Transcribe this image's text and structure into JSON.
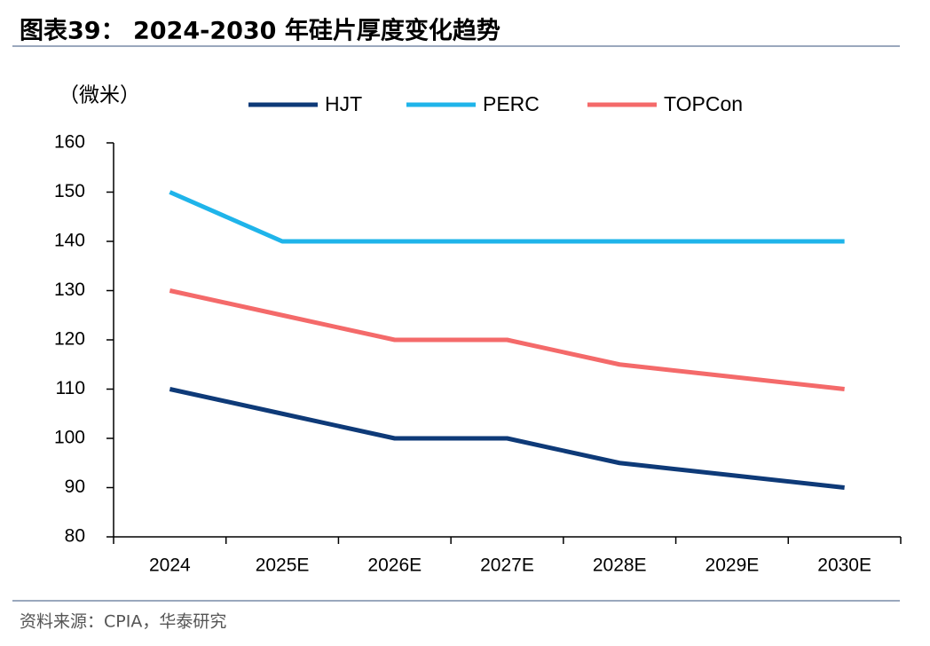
{
  "chart_data": {
    "type": "line",
    "title": "图表39： 2024-2030 年硅片厚度变化趋势",
    "y_label": "（微米）",
    "source": "资料来源：CPIA，华泰研究",
    "categories": [
      "2024",
      "2025E",
      "2026E",
      "2027E",
      "2028E",
      "2029E",
      "2030E"
    ],
    "series": [
      {
        "name": "HJT",
        "color": "#0e3a78",
        "values": [
          110,
          105,
          100,
          100,
          95,
          92.5,
          90
        ]
      },
      {
        "name": "PERC",
        "color": "#1fb4ea",
        "values": [
          150,
          140,
          140,
          140,
          140,
          140,
          140
        ]
      },
      {
        "name": "TOPCon",
        "color": "#f46a6a",
        "values": [
          130,
          125,
          120,
          120,
          115,
          112.5,
          110
        ]
      }
    ],
    "ylim": [
      80,
      160
    ],
    "yticks": [
      80,
      90,
      100,
      110,
      120,
      130,
      140,
      150,
      160
    ],
    "grid": false
  }
}
